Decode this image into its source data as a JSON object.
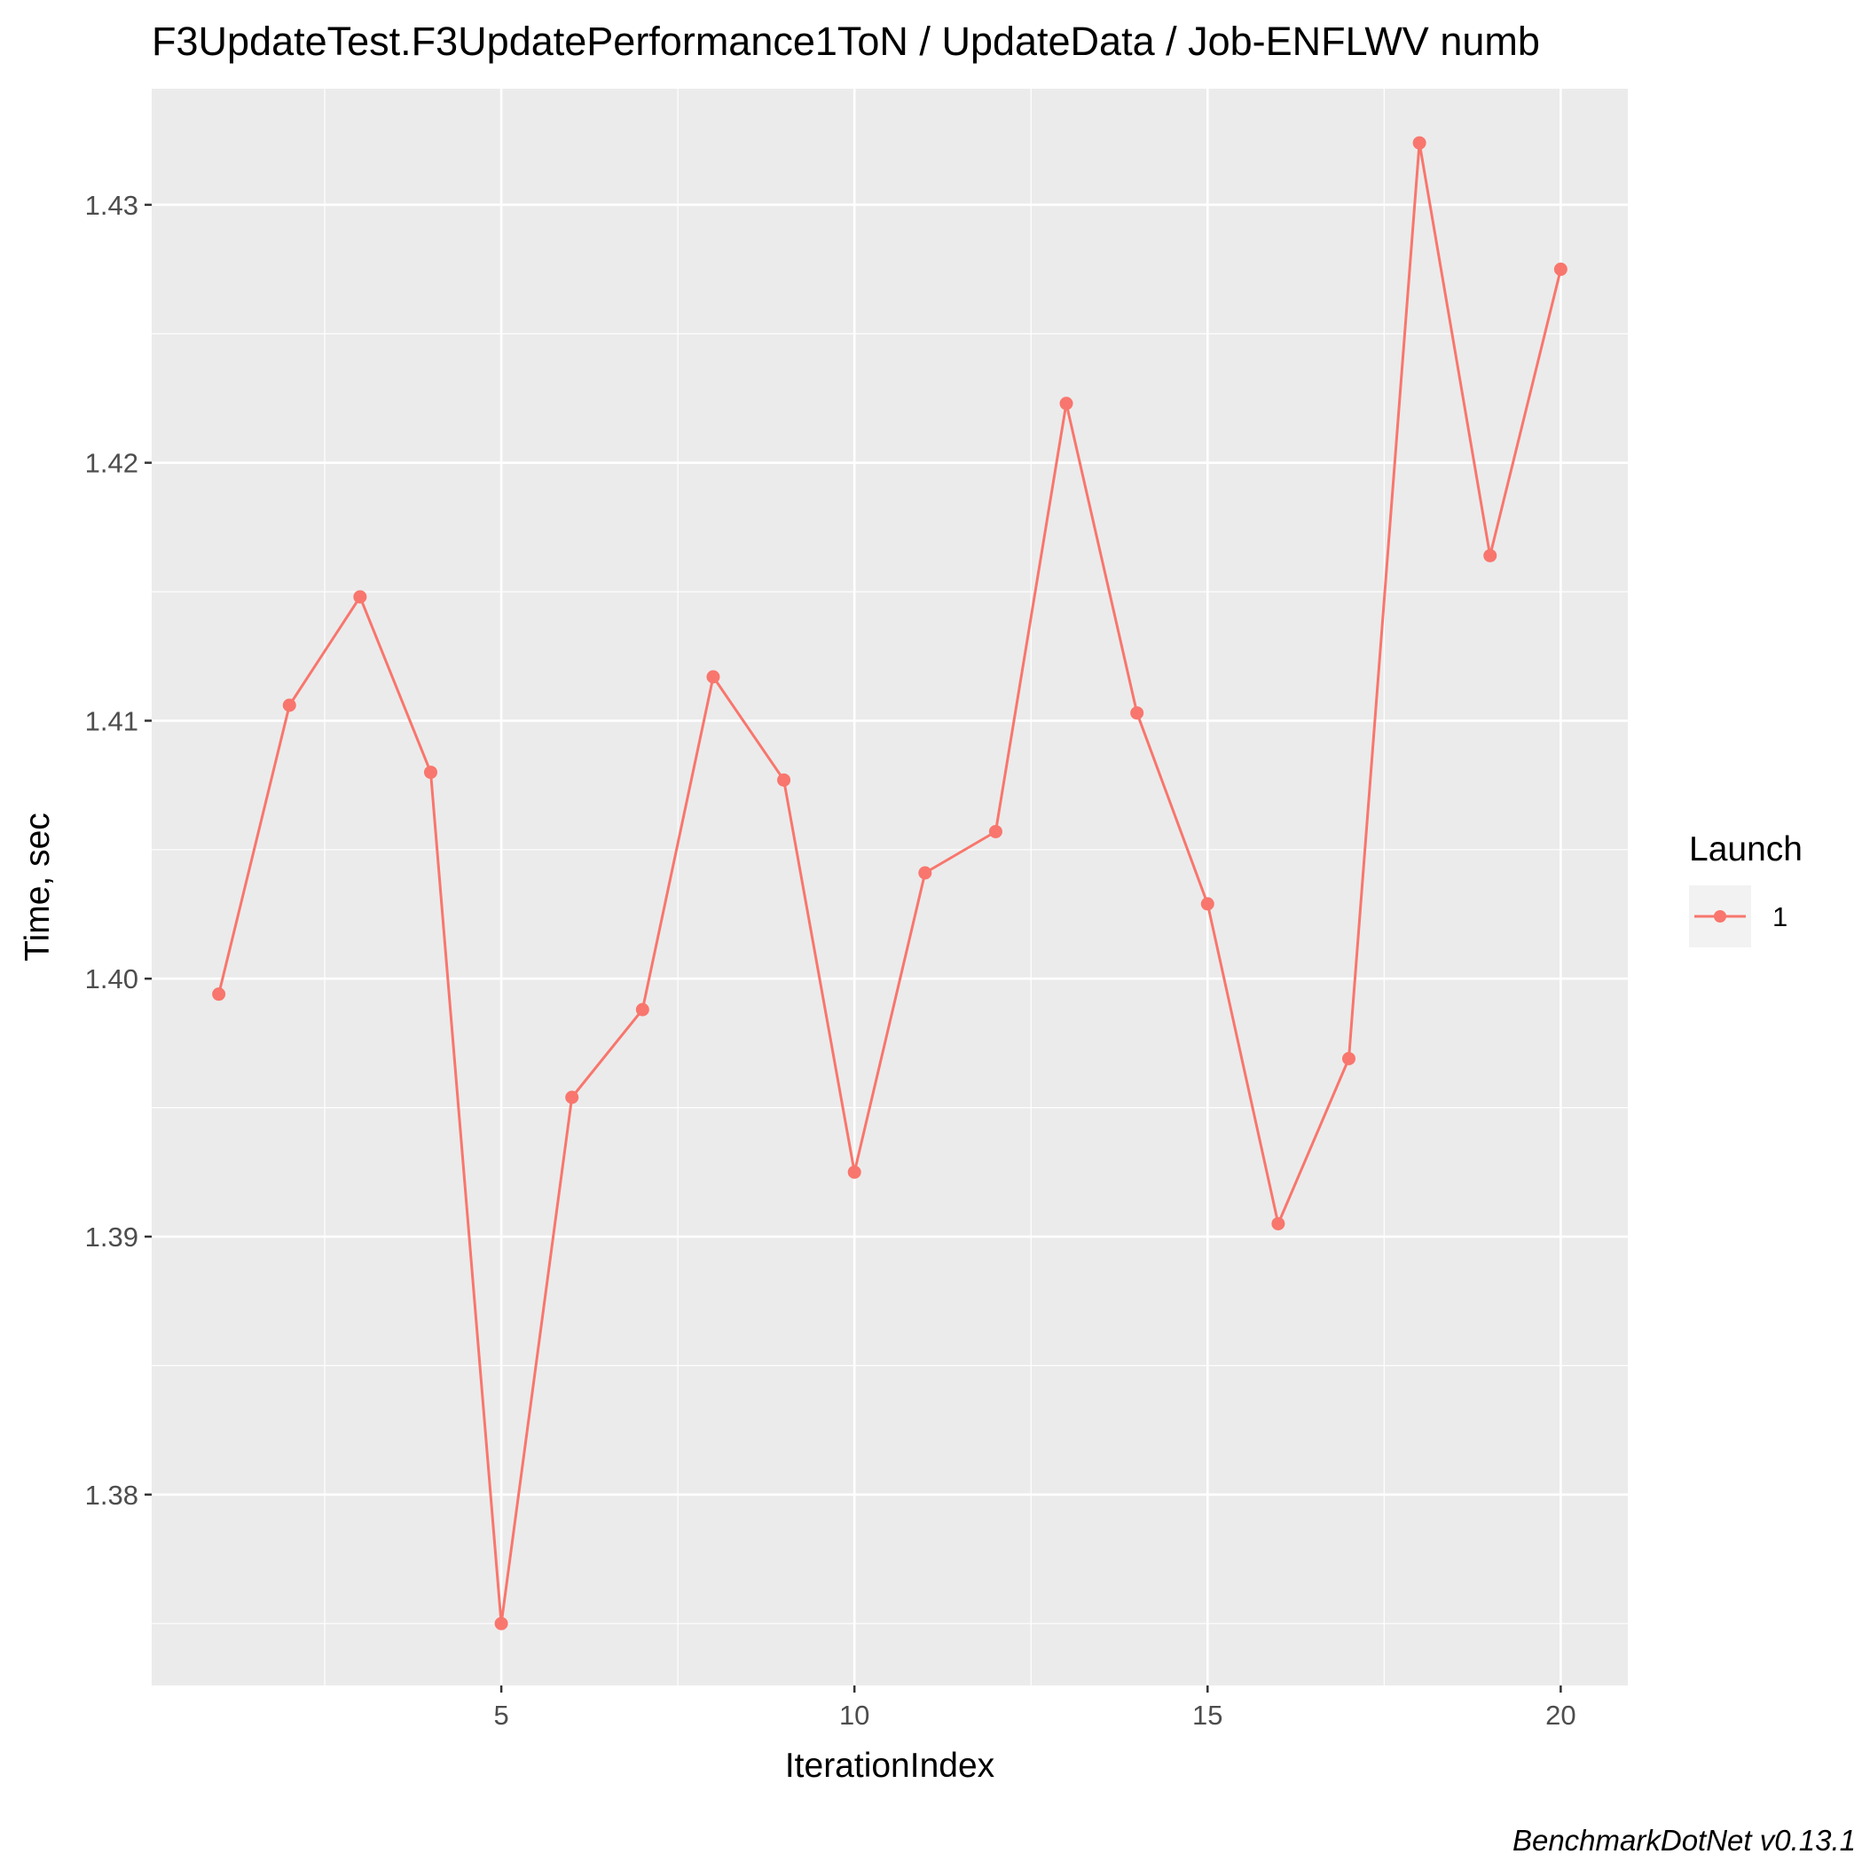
{
  "title": "F3UpdateTest.F3UpdatePerformance1ToN / UpdateData / Job-ENFLWV numb",
  "caption": "BenchmarkDotNet v0.13.1",
  "colors": {
    "panel": "#EBEBEB",
    "grid": "#FFFFFF",
    "series": "#F8766D",
    "tick_text": "#4D4D4D"
  },
  "chart_data": {
    "type": "line",
    "title": "F3UpdateTest.F3UpdatePerformance1ToN / UpdateData / Job-ENFLWV numb",
    "xlabel": "IterationIndex",
    "ylabel": "Time, sec",
    "xlim": [
      0.05,
      20.95
    ],
    "ylim": [
      1.3726,
      1.4345
    ],
    "x_ticks": [
      5,
      10,
      15,
      20
    ],
    "x_tick_labels": [
      "5",
      "10",
      "15",
      "20"
    ],
    "y_ticks": [
      1.38,
      1.39,
      1.4,
      1.41,
      1.42,
      1.43
    ],
    "y_tick_labels": [
      "1.38",
      "1.39",
      "1.40",
      "1.41",
      "1.42",
      "1.43"
    ],
    "grid": true,
    "legend": {
      "title": "Launch",
      "position": "right",
      "entries": [
        "1"
      ]
    },
    "series": [
      {
        "name": "1",
        "x": [
          1,
          2,
          3,
          4,
          5,
          6,
          7,
          8,
          9,
          10,
          11,
          12,
          13,
          14,
          15,
          16,
          17,
          18,
          19,
          20
        ],
        "values": [
          1.3994,
          1.4106,
          1.4148,
          1.408,
          1.375,
          1.3954,
          1.3988,
          1.4117,
          1.4077,
          1.3925,
          1.4041,
          1.4057,
          1.4223,
          1.4103,
          1.4029,
          1.3905,
          1.3969,
          1.4324,
          1.4164,
          1.4275
        ]
      }
    ]
  }
}
